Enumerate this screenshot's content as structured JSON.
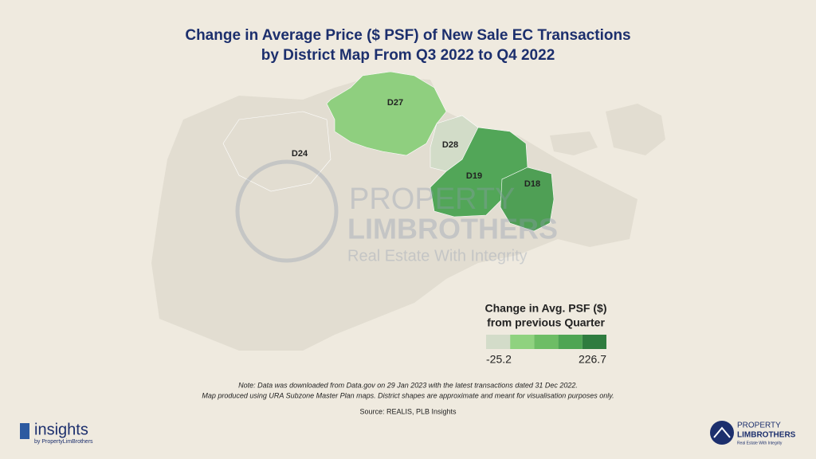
{
  "title": [
    "Change in Average Price ($ PSF) of New Sale EC Transactions",
    "by District Map From Q3 2022 to Q4 2022"
  ],
  "districts": [
    {
      "label": "D27",
      "color": "#8fcf7f"
    },
    {
      "label": "D28",
      "color": "#d2dcc8"
    },
    {
      "label": "D19",
      "color": "#52a658"
    },
    {
      "label": "D18",
      "color": "#4f9f55"
    },
    {
      "label": "D24",
      "color": "#e2ddd1"
    }
  ],
  "legend": {
    "title": [
      "Change in Avg. PSF ($)",
      "from previous Quarter"
    ],
    "min": -25.2,
    "max": 226.7,
    "colors": [
      "#d3dcc9",
      "#8fd27f",
      "#6dbd65",
      "#4ea553",
      "#2f7c3f"
    ]
  },
  "watermark": {
    "line1": "PROPERTY",
    "line2": "LIMBROTHERS",
    "tagline": "Real Estate With Integrity"
  },
  "note": [
    "Note: Data was downloaded from Data.gov on 29 Jan 2023 with the latest transactions dated 31 Dec 2022.",
    "Map produced using URA Subzone Master Plan maps. District shapes are approximate and meant for visualisation purposes only."
  ],
  "source": "Source: REALIS, PLB Insights",
  "footer": {
    "brand": "insights",
    "brand_sub": "by PropertyLimBrothers",
    "logo_line1": "PROPERTY",
    "logo_line2": "LIMBROTHERS",
    "logo_tagline": "Real Estate With Integrity"
  }
}
